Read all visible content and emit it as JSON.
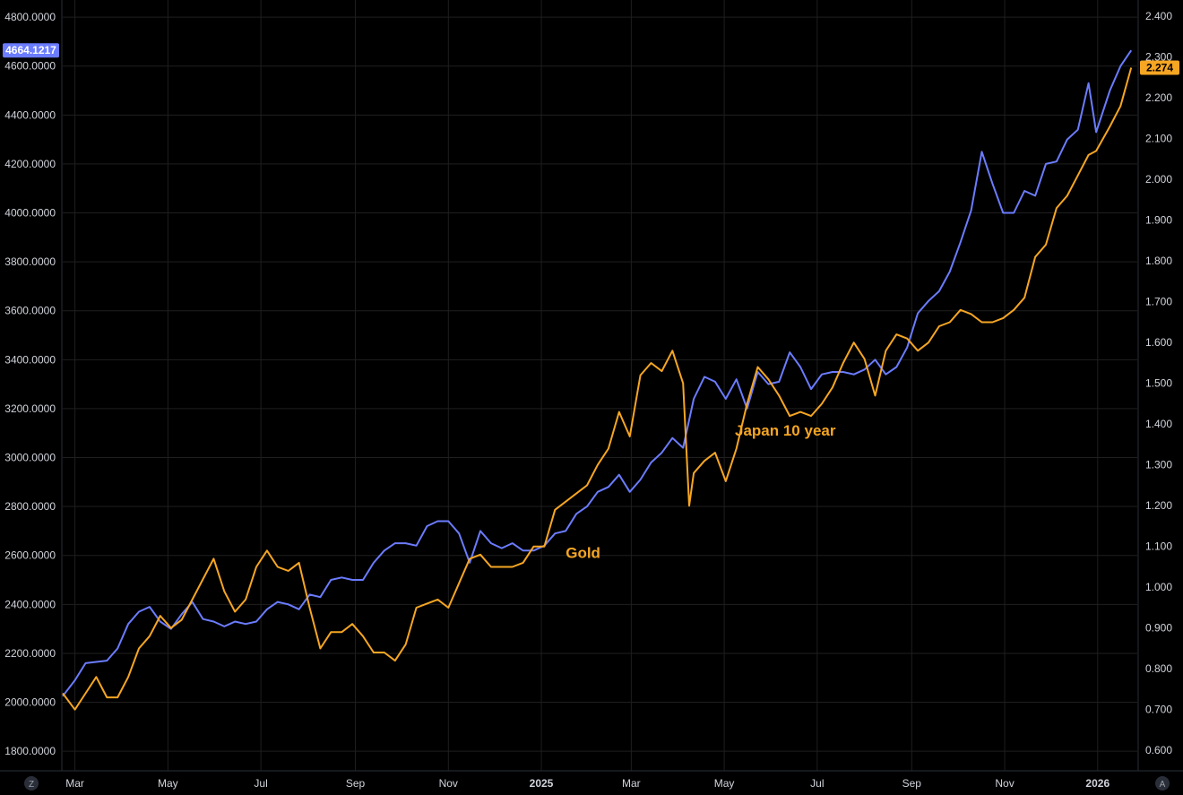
{
  "chart_data": {
    "type": "line",
    "title": "",
    "xlabel": "",
    "x_ticks": [
      {
        "label": "Mar",
        "date": "2024-03-01"
      },
      {
        "label": "May",
        "date": "2024-05-01"
      },
      {
        "label": "Jul",
        "date": "2024-07-01"
      },
      {
        "label": "Sep",
        "date": "2024-09-01"
      },
      {
        "label": "Nov",
        "date": "2024-11-01"
      },
      {
        "label": "2025",
        "date": "2025-01-01",
        "bold": true
      },
      {
        "label": "Mar",
        "date": "2025-03-01"
      },
      {
        "label": "May",
        "date": "2025-05-01"
      },
      {
        "label": "Jul",
        "date": "2025-07-01"
      },
      {
        "label": "Sep",
        "date": "2025-09-01"
      },
      {
        "label": "Nov",
        "date": "2025-11-01"
      },
      {
        "label": "2026",
        "date": "2026-01-01",
        "bold": true
      }
    ],
    "x_range": [
      "2024-02-22",
      "2026-01-27"
    ],
    "y_left": {
      "ticks": [
        "1800.0000",
        "2000.0000",
        "2200.0000",
        "2400.0000",
        "2600.0000",
        "2800.0000",
        "3000.0000",
        "3200.0000",
        "3400.0000",
        "3600.0000",
        "3800.0000",
        "4000.0000",
        "4200.0000",
        "4400.0000",
        "4600.0000",
        "4800.0000"
      ],
      "range": [
        1720,
        4870
      ]
    },
    "y_right": {
      "ticks": [
        "0.600",
        "0.700",
        "0.800",
        "0.900",
        "1.000",
        "1.100",
        "1.200",
        "1.300",
        "1.400",
        "1.500",
        "1.600",
        "1.700",
        "1.800",
        "1.900",
        "2.000",
        "2.100",
        "2.200",
        "2.300",
        "2.400"
      ],
      "range": [
        0.55,
        2.44
      ]
    },
    "grid": true,
    "series": [
      {
        "name": "Gold",
        "axis": "left",
        "color": "#6b7cff",
        "last_value_label": "4664.1217",
        "points": [
          [
            "2024-02-22",
            2025
          ],
          [
            "2024-03-01",
            2090
          ],
          [
            "2024-03-08",
            2160
          ],
          [
            "2024-03-15",
            2165
          ],
          [
            "2024-03-22",
            2170
          ],
          [
            "2024-03-29",
            2220
          ],
          [
            "2024-04-05",
            2320
          ],
          [
            "2024-04-12",
            2370
          ],
          [
            "2024-04-19",
            2390
          ],
          [
            "2024-04-26",
            2330
          ],
          [
            "2024-05-03",
            2300
          ],
          [
            "2024-05-10",
            2360
          ],
          [
            "2024-05-17",
            2410
          ],
          [
            "2024-05-24",
            2340
          ],
          [
            "2024-05-31",
            2330
          ],
          [
            "2024-06-07",
            2310
          ],
          [
            "2024-06-14",
            2330
          ],
          [
            "2024-06-21",
            2320
          ],
          [
            "2024-06-28",
            2330
          ],
          [
            "2024-07-05",
            2380
          ],
          [
            "2024-07-12",
            2410
          ],
          [
            "2024-07-19",
            2400
          ],
          [
            "2024-07-26",
            2380
          ],
          [
            "2024-08-02",
            2440
          ],
          [
            "2024-08-09",
            2430
          ],
          [
            "2024-08-16",
            2500
          ],
          [
            "2024-08-23",
            2510
          ],
          [
            "2024-08-30",
            2500
          ],
          [
            "2024-09-06",
            2500
          ],
          [
            "2024-09-13",
            2570
          ],
          [
            "2024-09-20",
            2620
          ],
          [
            "2024-09-27",
            2650
          ],
          [
            "2024-10-04",
            2650
          ],
          [
            "2024-10-11",
            2640
          ],
          [
            "2024-10-18",
            2720
          ],
          [
            "2024-10-25",
            2740
          ],
          [
            "2024-11-01",
            2740
          ],
          [
            "2024-11-08",
            2690
          ],
          [
            "2024-11-15",
            2570
          ],
          [
            "2024-11-22",
            2700
          ],
          [
            "2024-11-29",
            2650
          ],
          [
            "2024-12-06",
            2630
          ],
          [
            "2024-12-13",
            2650
          ],
          [
            "2024-12-20",
            2620
          ],
          [
            "2024-12-27",
            2620
          ],
          [
            "2025-01-03",
            2640
          ],
          [
            "2025-01-10",
            2690
          ],
          [
            "2025-01-17",
            2700
          ],
          [
            "2025-01-24",
            2770
          ],
          [
            "2025-01-31",
            2800
          ],
          [
            "2025-02-07",
            2860
          ],
          [
            "2025-02-14",
            2880
          ],
          [
            "2025-02-21",
            2930
          ],
          [
            "2025-02-28",
            2860
          ],
          [
            "2025-03-07",
            2910
          ],
          [
            "2025-03-14",
            2980
          ],
          [
            "2025-03-21",
            3020
          ],
          [
            "2025-03-28",
            3080
          ],
          [
            "2025-04-04",
            3040
          ],
          [
            "2025-04-11",
            3240
          ],
          [
            "2025-04-18",
            3330
          ],
          [
            "2025-04-25",
            3310
          ],
          [
            "2025-05-02",
            3240
          ],
          [
            "2025-05-09",
            3320
          ],
          [
            "2025-05-16",
            3200
          ],
          [
            "2025-05-23",
            3350
          ],
          [
            "2025-05-30",
            3300
          ],
          [
            "2025-06-06",
            3310
          ],
          [
            "2025-06-13",
            3430
          ],
          [
            "2025-06-20",
            3370
          ],
          [
            "2025-06-27",
            3280
          ],
          [
            "2025-07-04",
            3340
          ],
          [
            "2025-07-11",
            3350
          ],
          [
            "2025-07-18",
            3350
          ],
          [
            "2025-07-25",
            3340
          ],
          [
            "2025-08-01",
            3360
          ],
          [
            "2025-08-08",
            3400
          ],
          [
            "2025-08-15",
            3340
          ],
          [
            "2025-08-22",
            3370
          ],
          [
            "2025-08-29",
            3450
          ],
          [
            "2025-09-05",
            3590
          ],
          [
            "2025-09-12",
            3640
          ],
          [
            "2025-09-19",
            3680
          ],
          [
            "2025-09-26",
            3760
          ],
          [
            "2025-10-03",
            3880
          ],
          [
            "2025-10-10",
            4010
          ],
          [
            "2025-10-17",
            4250
          ],
          [
            "2025-10-24",
            4120
          ],
          [
            "2025-10-31",
            4000
          ],
          [
            "2025-11-07",
            4000
          ],
          [
            "2025-11-14",
            4090
          ],
          [
            "2025-11-21",
            4070
          ],
          [
            "2025-11-28",
            4200
          ],
          [
            "2025-12-05",
            4210
          ],
          [
            "2025-12-12",
            4300
          ],
          [
            "2025-12-19",
            4340
          ],
          [
            "2025-12-26",
            4530
          ],
          [
            "2025-12-31",
            4330
          ],
          [
            "2026-01-09",
            4500
          ],
          [
            "2026-01-16",
            4600
          ],
          [
            "2026-01-23",
            4664.1217
          ]
        ]
      },
      {
        "name": "Japan 10 year",
        "axis": "right",
        "color": "#f6a623",
        "last_value_label": "2.274",
        "points": [
          [
            "2024-02-22",
            0.74
          ],
          [
            "2024-03-01",
            0.7
          ],
          [
            "2024-03-08",
            0.74
          ],
          [
            "2024-03-15",
            0.78
          ],
          [
            "2024-03-22",
            0.73
          ],
          [
            "2024-03-29",
            0.73
          ],
          [
            "2024-04-05",
            0.78
          ],
          [
            "2024-04-12",
            0.85
          ],
          [
            "2024-04-19",
            0.88
          ],
          [
            "2024-04-26",
            0.93
          ],
          [
            "2024-05-03",
            0.9
          ],
          [
            "2024-05-10",
            0.92
          ],
          [
            "2024-05-17",
            0.97
          ],
          [
            "2024-05-24",
            1.02
          ],
          [
            "2024-05-31",
            1.07
          ],
          [
            "2024-06-07",
            0.99
          ],
          [
            "2024-06-14",
            0.94
          ],
          [
            "2024-06-21",
            0.97
          ],
          [
            "2024-06-28",
            1.05
          ],
          [
            "2024-07-05",
            1.09
          ],
          [
            "2024-07-12",
            1.05
          ],
          [
            "2024-07-19",
            1.04
          ],
          [
            "2024-07-26",
            1.06
          ],
          [
            "2024-08-02",
            0.95
          ],
          [
            "2024-08-09",
            0.85
          ],
          [
            "2024-08-16",
            0.89
          ],
          [
            "2024-08-23",
            0.89
          ],
          [
            "2024-08-30",
            0.91
          ],
          [
            "2024-09-06",
            0.88
          ],
          [
            "2024-09-13",
            0.84
          ],
          [
            "2024-09-20",
            0.84
          ],
          [
            "2024-09-27",
            0.82
          ],
          [
            "2024-10-04",
            0.86
          ],
          [
            "2024-10-11",
            0.95
          ],
          [
            "2024-10-18",
            0.96
          ],
          [
            "2024-10-25",
            0.97
          ],
          [
            "2024-11-01",
            0.95
          ],
          [
            "2024-11-08",
            1.01
          ],
          [
            "2024-11-15",
            1.07
          ],
          [
            "2024-11-22",
            1.08
          ],
          [
            "2024-11-29",
            1.05
          ],
          [
            "2024-12-06",
            1.05
          ],
          [
            "2024-12-13",
            1.05
          ],
          [
            "2024-12-20",
            1.06
          ],
          [
            "2024-12-27",
            1.1
          ],
          [
            "2025-01-03",
            1.1
          ],
          [
            "2025-01-10",
            1.19
          ],
          [
            "2025-01-17",
            1.21
          ],
          [
            "2025-01-24",
            1.23
          ],
          [
            "2025-01-31",
            1.25
          ],
          [
            "2025-02-07",
            1.3
          ],
          [
            "2025-02-14",
            1.34
          ],
          [
            "2025-02-21",
            1.43
          ],
          [
            "2025-02-28",
            1.37
          ],
          [
            "2025-03-07",
            1.52
          ],
          [
            "2025-03-14",
            1.55
          ],
          [
            "2025-03-21",
            1.53
          ],
          [
            "2025-03-28",
            1.58
          ],
          [
            "2025-04-04",
            1.5
          ],
          [
            "2025-04-08",
            1.2
          ],
          [
            "2025-04-11",
            1.28
          ],
          [
            "2025-04-18",
            1.31
          ],
          [
            "2025-04-25",
            1.33
          ],
          [
            "2025-05-02",
            1.26
          ],
          [
            "2025-05-09",
            1.34
          ],
          [
            "2025-05-16",
            1.45
          ],
          [
            "2025-05-23",
            1.54
          ],
          [
            "2025-05-30",
            1.51
          ],
          [
            "2025-06-06",
            1.47
          ],
          [
            "2025-06-13",
            1.42
          ],
          [
            "2025-06-20",
            1.43
          ],
          [
            "2025-06-27",
            1.42
          ],
          [
            "2025-07-04",
            1.45
          ],
          [
            "2025-07-11",
            1.49
          ],
          [
            "2025-07-18",
            1.55
          ],
          [
            "2025-07-25",
            1.6
          ],
          [
            "2025-08-01",
            1.56
          ],
          [
            "2025-08-08",
            1.47
          ],
          [
            "2025-08-15",
            1.58
          ],
          [
            "2025-08-22",
            1.62
          ],
          [
            "2025-08-29",
            1.61
          ],
          [
            "2025-09-05",
            1.58
          ],
          [
            "2025-09-12",
            1.6
          ],
          [
            "2025-09-19",
            1.64
          ],
          [
            "2025-09-26",
            1.65
          ],
          [
            "2025-10-03",
            1.68
          ],
          [
            "2025-10-10",
            1.67
          ],
          [
            "2025-10-17",
            1.65
          ],
          [
            "2025-10-24",
            1.65
          ],
          [
            "2025-10-31",
            1.66
          ],
          [
            "2025-11-07",
            1.68
          ],
          [
            "2025-11-14",
            1.71
          ],
          [
            "2025-11-21",
            1.81
          ],
          [
            "2025-11-28",
            1.84
          ],
          [
            "2025-12-05",
            1.93
          ],
          [
            "2025-12-12",
            1.96
          ],
          [
            "2025-12-19",
            2.01
          ],
          [
            "2025-12-26",
            2.06
          ],
          [
            "2025-12-31",
            2.07
          ],
          [
            "2026-01-09",
            2.13
          ],
          [
            "2026-01-16",
            2.18
          ],
          [
            "2026-01-23",
            2.274
          ]
        ]
      }
    ],
    "annotations": [
      {
        "text": "Japan 10 year",
        "date": "2025-05-08",
        "value": 3090,
        "axis": "left"
      },
      {
        "text": "Gold",
        "date": "2025-01-17",
        "value": 2590,
        "axis": "left"
      }
    ]
  },
  "corner_left_label": "Z",
  "corner_right_label": "A"
}
